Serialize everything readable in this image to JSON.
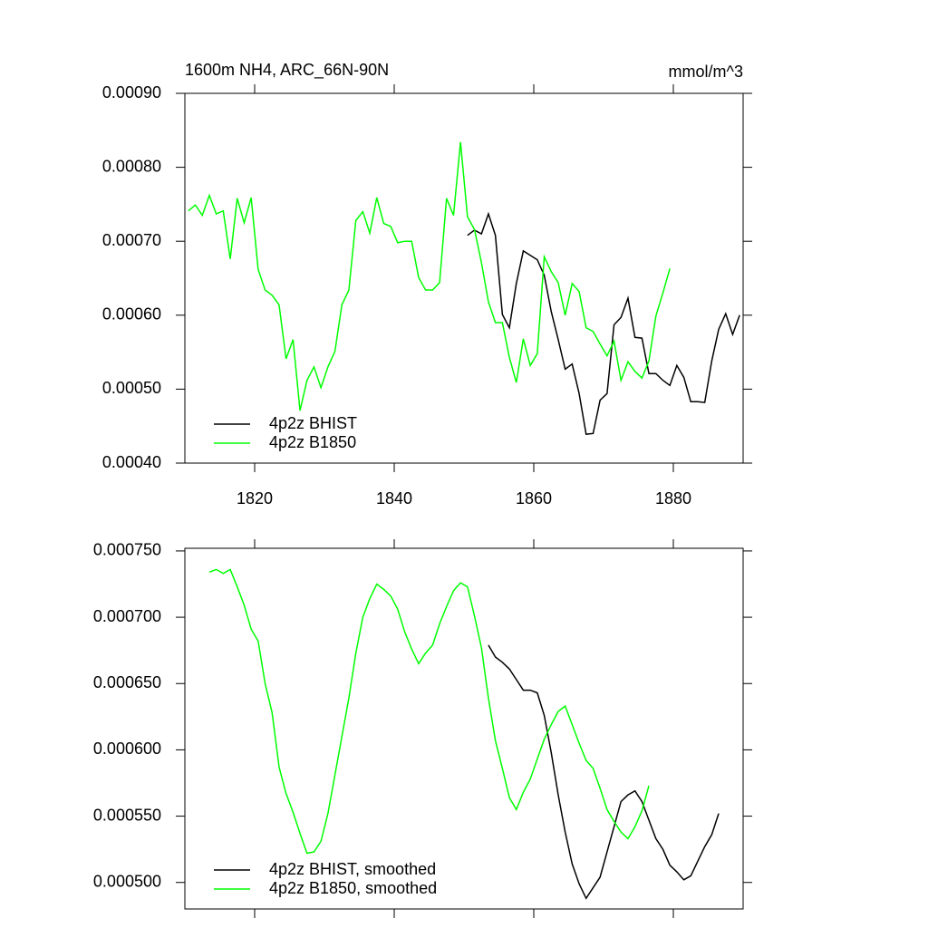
{
  "chart_data": [
    {
      "type": "line",
      "title": "1600m NH4, ARC_66N-90N",
      "units_label": "mmol/m^3",
      "xlim": [
        1810,
        1890
      ],
      "xticks": [
        1820,
        1840,
        1860,
        1880
      ],
      "ylim": [
        0.0004,
        0.0009
      ],
      "yticks": [
        {
          "value": 0.0004,
          "label": "0.00040"
        },
        {
          "value": 0.0005,
          "label": "0.00050"
        },
        {
          "value": 0.0006,
          "label": "0.00060"
        },
        {
          "value": 0.0007,
          "label": "0.00070"
        },
        {
          "value": 0.0008,
          "label": "0.00080"
        },
        {
          "value": 0.0009,
          "label": "0.00090"
        }
      ],
      "legend": "lower left",
      "series": [
        {
          "name": "4p2z BHIST",
          "color": "#000000",
          "x": [
            1850.5,
            1851.5,
            1852.5,
            1853.5,
            1854.5,
            1855.5,
            1856.5,
            1857.5,
            1858.5,
            1859.5,
            1860.5,
            1861.5,
            1862.5,
            1863.5,
            1864.5,
            1865.5,
            1866.5,
            1867.5,
            1868.5,
            1869.5,
            1870.5,
            1871.5,
            1872.5,
            1873.5,
            1874.5,
            1875.5,
            1876.5,
            1877.5,
            1878.5,
            1879.5,
            1880.5,
            1881.5,
            1882.5,
            1883.5,
            1884.5,
            1885.5,
            1886.5,
            1887.5,
            1888.5,
            1889.5
          ],
          "values": [
            0.000708,
            0.000715,
            0.00071,
            0.000737,
            0.000708,
            0.000601,
            0.000583,
            0.000643,
            0.000687,
            0.000681,
            0.000675,
            0.000654,
            0.000605,
            0.000567,
            0.000527,
            0.000534,
            0.000494,
            0.000439,
            0.00044,
            0.000485,
            0.000494,
            0.000587,
            0.000597,
            0.000623,
            0.00057,
            0.000569,
            0.000521,
            0.000521,
            0.000512,
            0.000505,
            0.000532,
            0.000516,
            0.000483,
            0.000483,
            0.000482,
            0.000538,
            0.000581,
            0.000602,
            0.000574,
            0.0006
          ]
        },
        {
          "name": "4p2z B1850",
          "color": "#00ff00",
          "x": [
            1810.5,
            1811.5,
            1812.5,
            1813.5,
            1814.5,
            1815.5,
            1816.5,
            1817.5,
            1818.5,
            1819.5,
            1820.5,
            1821.5,
            1822.5,
            1823.5,
            1824.5,
            1825.5,
            1826.5,
            1827.5,
            1828.5,
            1829.5,
            1830.5,
            1831.5,
            1832.5,
            1833.5,
            1834.5,
            1835.5,
            1836.5,
            1837.5,
            1838.5,
            1839.5,
            1840.5,
            1841.5,
            1842.5,
            1843.5,
            1844.5,
            1845.5,
            1846.5,
            1847.5,
            1848.5,
            1849.5,
            1850.5,
            1851.5,
            1852.5,
            1853.5,
            1854.5,
            1855.5,
            1856.5,
            1857.5,
            1858.5,
            1859.5,
            1860.5,
            1861.5,
            1862.5,
            1863.5,
            1864.5,
            1865.5,
            1866.5,
            1867.5,
            1868.5,
            1869.5,
            1870.5,
            1871.5,
            1872.5,
            1873.5,
            1874.5,
            1875.5,
            1876.5,
            1877.5,
            1878.5,
            1879.5
          ],
          "values": [
            0.000741,
            0.000749,
            0.000735,
            0.000762,
            0.000737,
            0.000741,
            0.000676,
            0.000758,
            0.000725,
            0.000759,
            0.000662,
            0.000634,
            0.000627,
            0.000614,
            0.000541,
            0.000567,
            0.000471,
            0.000512,
            0.00053,
            0.000502,
            0.00053,
            0.000551,
            0.000614,
            0.000634,
            0.000728,
            0.00074,
            0.000711,
            0.000759,
            0.000724,
            0.00072,
            0.000698,
            0.0007,
            0.0007,
            0.000651,
            0.000634,
            0.000634,
            0.000644,
            0.000758,
            0.000735,
            0.000834,
            0.000733,
            0.000716,
            0.000671,
            0.000618,
            0.00059,
            0.00059,
            0.000543,
            0.000509,
            0.000568,
            0.000532,
            0.000548,
            0.000679,
            0.000659,
            0.000644,
            0.0006,
            0.000643,
            0.000632,
            0.000583,
            0.000578,
            0.000561,
            0.000545,
            0.000565,
            0.000512,
            0.000537,
            0.000524,
            0.000515,
            0.000538,
            0.000599,
            0.00063,
            0.000663
          ]
        }
      ]
    },
    {
      "type": "line",
      "xlim": [
        1810,
        1890
      ],
      "ylim": [
        0.00048,
        0.000752
      ],
      "yticks": [
        {
          "value": 0.0005,
          "label": "0.000500"
        },
        {
          "value": 0.00055,
          "label": "0.000550"
        },
        {
          "value": 0.0006,
          "label": "0.000600"
        },
        {
          "value": 0.00065,
          "label": "0.000650"
        },
        {
          "value": 0.0007,
          "label": "0.000700"
        },
        {
          "value": 0.00075,
          "label": "0.000750"
        }
      ],
      "legend": "lower left",
      "series": [
        {
          "name": "4p2z BHIST, smoothed",
          "color": "#000000",
          "x": [
            1853.5,
            1854.5,
            1855.5,
            1856.5,
            1857.5,
            1858.5,
            1859.5,
            1860.5,
            1861.5,
            1862.5,
            1863.5,
            1864.5,
            1865.5,
            1866.5,
            1867.5,
            1868.5,
            1869.5,
            1870.5,
            1871.5,
            1872.5,
            1873.5,
            1874.5,
            1875.5,
            1876.5,
            1877.5,
            1878.5,
            1879.5,
            1880.5,
            1881.5,
            1882.5,
            1883.5,
            1884.5,
            1885.5,
            1886.5
          ],
          "values": [
            0.000679,
            0.00067,
            0.000666,
            0.000661,
            0.000653,
            0.000645,
            0.000645,
            0.000643,
            0.000626,
            0.000598,
            0.000566,
            0.000538,
            0.000514,
            0.000499,
            0.000488,
            0.000496,
            0.000504,
            0.000523,
            0.000542,
            0.000561,
            0.000566,
            0.000569,
            0.000561,
            0.000547,
            0.000533,
            0.000525,
            0.000513,
            0.000508,
            0.000502,
            0.000505,
            0.000516,
            0.000527,
            0.000536,
            0.000552
          ]
        },
        {
          "name": "4p2z B1850, smoothed",
          "color": "#00ff00",
          "x": [
            1813.5,
            1814.5,
            1815.5,
            1816.5,
            1817.5,
            1818.5,
            1819.5,
            1820.5,
            1821.5,
            1822.5,
            1823.5,
            1824.5,
            1825.5,
            1826.5,
            1827.5,
            1828.5,
            1829.5,
            1830.5,
            1831.5,
            1832.5,
            1833.5,
            1834.5,
            1835.5,
            1836.5,
            1837.5,
            1838.5,
            1839.5,
            1840.5,
            1841.5,
            1842.5,
            1843.5,
            1844.5,
            1845.5,
            1846.5,
            1847.5,
            1848.5,
            1849.5,
            1850.5,
            1851.5,
            1852.5,
            1853.5,
            1854.5,
            1855.5,
            1856.5,
            1857.5,
            1858.5,
            1859.5,
            1860.5,
            1861.5,
            1862.5,
            1863.5,
            1864.5,
            1865.5,
            1866.5,
            1867.5,
            1868.5,
            1869.5,
            1870.5,
            1871.5,
            1872.5,
            1873.5,
            1874.5,
            1875.5,
            1876.5
          ],
          "values": [
            0.000734,
            0.000736,
            0.000733,
            0.000736,
            0.000723,
            0.000709,
            0.000691,
            0.000682,
            0.00065,
            0.000628,
            0.000587,
            0.000567,
            0.000553,
            0.000537,
            0.000522,
            0.000523,
            0.000531,
            0.000552,
            0.000581,
            0.00061,
            0.000639,
            0.000673,
            0.0007,
            0.000714,
            0.000725,
            0.000721,
            0.000716,
            0.000706,
            0.000689,
            0.000676,
            0.000665,
            0.000673,
            0.000679,
            0.000695,
            0.000708,
            0.00072,
            0.000726,
            0.000723,
            0.000701,
            0.000677,
            0.000639,
            0.000607,
            0.000586,
            0.000564,
            0.000555,
            0.000568,
            0.000578,
            0.000593,
            0.000608,
            0.000619,
            0.000629,
            0.000633,
            0.000619,
            0.000605,
            0.000592,
            0.000586,
            0.000571,
            0.000555,
            0.000546,
            0.000538,
            0.000533,
            0.000542,
            0.000554,
            0.000573
          ]
        }
      ]
    }
  ]
}
